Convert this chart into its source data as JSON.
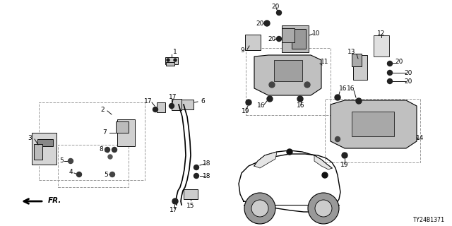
{
  "diagram_id": "TY24B1371",
  "background": "#ffffff",
  "fig_width": 6.4,
  "fig_height": 3.2,
  "dpi": 100
}
